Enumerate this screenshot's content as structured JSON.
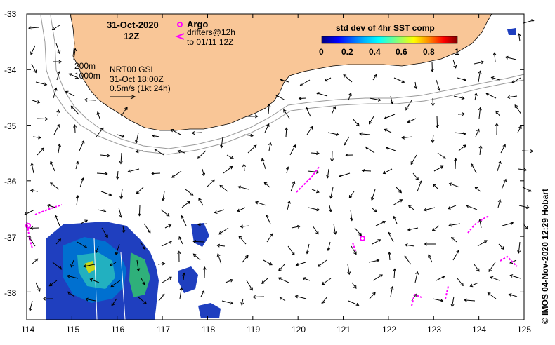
{
  "map": {
    "lon_range": [
      114,
      125
    ],
    "lat_range": [
      -38.5,
      -33
    ],
    "lon_ticks": [
      "114",
      "115",
      "116",
      "117",
      "118",
      "119",
      "120",
      "121",
      "122",
      "123",
      "124",
      "125"
    ],
    "lat_ticks": [
      "-33",
      "-34",
      "-35",
      "-36",
      "-37",
      "-38"
    ],
    "lat_tick_values": [
      -33,
      -34,
      -35,
      -36,
      -37,
      -38
    ],
    "lon_tick_values": [
      114,
      115,
      116,
      117,
      118,
      119,
      120,
      121,
      122,
      123,
      124,
      125
    ],
    "land_color": "#f9c697",
    "isobath_color": "#9a9a9a"
  },
  "annotations": {
    "date": "31-Oct-2020",
    "time": "12Z",
    "argo_label": "Argo",
    "drifters_label": "drifters@12h",
    "drifters_to": "to 01/11 12Z",
    "isobath_200": "200m",
    "isobath_1000": "1000m",
    "product": "NRT00 GSL",
    "product_time": "31-Oct 18:00Z",
    "scale": "0.5m/s (1kt 24h)"
  },
  "colorbar": {
    "title": "std dev of 4hr SST comp",
    "ticks": [
      "0",
      "0.2",
      "0.4",
      "0.6",
      "0.8",
      "1"
    ],
    "colors": [
      "#00007f",
      "#0000ff",
      "#007fff",
      "#00ffff",
      "#7fff7f",
      "#ffff00",
      "#ff7f00",
      "#ff0000",
      "#7f0000"
    ]
  },
  "credit": "© IMOS 04-Nov-2020 12:29 Hobart",
  "colors": {
    "magenta": "#ff00ff",
    "arrow": "#000000"
  }
}
